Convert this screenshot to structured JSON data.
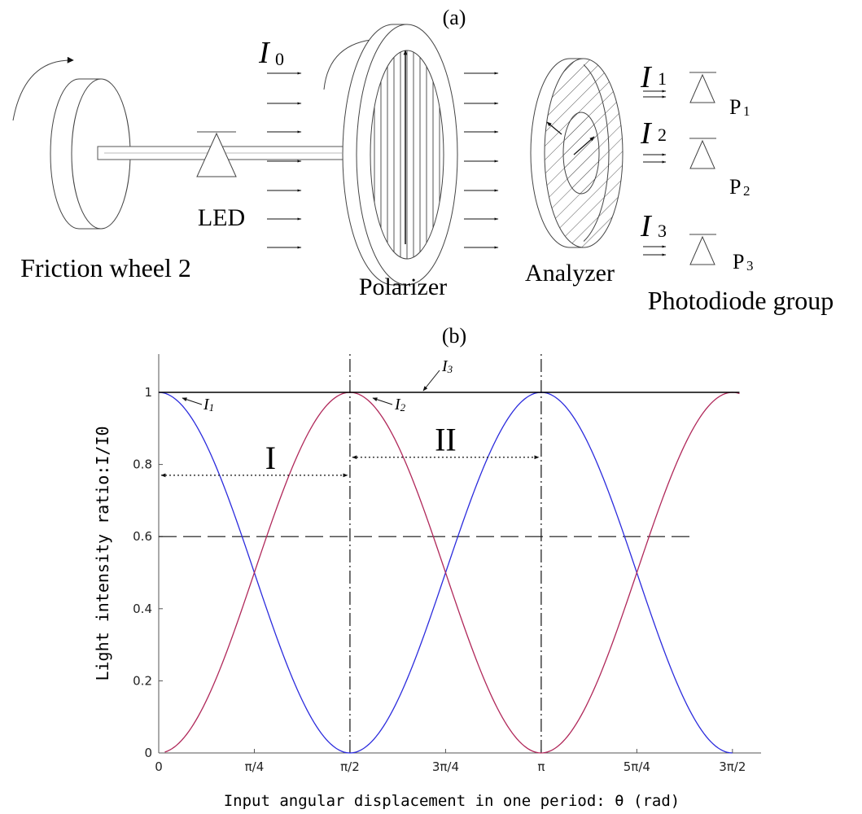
{
  "panel_a": {
    "label": "(a)",
    "friction_wheel_label": "Friction wheel 2",
    "led_label": "LED",
    "polarizer_label": "Polarizer",
    "analyzer_label": "Analyzer",
    "photodiode_label": "Photodiode group",
    "i0": {
      "main": "I",
      "sub": "0"
    },
    "i1": {
      "main": "I",
      "sub": "1"
    },
    "i2": {
      "main": "I",
      "sub": "2"
    },
    "i3": {
      "main": "I",
      "sub": "3"
    },
    "p1": {
      "main": "P",
      "sub": "1"
    },
    "p2": {
      "main": "P",
      "sub": "2"
    },
    "p3": {
      "main": "P",
      "sub": "3"
    }
  },
  "panel_b": {
    "label": "(b)",
    "region_1_label": "I",
    "region_2_label": "II",
    "curve_label_i1": "I1",
    "curve_label_i2": "I2",
    "curve_label_i3": "I3"
  },
  "chart_data": {
    "type": "line",
    "title": "",
    "xlabel": "Input angular displacement in one period: θ (rad)",
    "ylabel": "Light intensity ratio:I/I0",
    "xlim": [
      0,
      4.75
    ],
    "ylim": [
      0,
      1.1
    ],
    "x_ticks": [
      0,
      0.7854,
      1.5708,
      2.3562,
      3.1416,
      3.927,
      4.7124
    ],
    "x_tick_labels": [
      "0",
      "π/4",
      "π/2",
      "3π/4",
      "π",
      "5π/4",
      "3π/2"
    ],
    "y_ticks": [
      0,
      0.2,
      0.4,
      0.6,
      0.8,
      1
    ],
    "y_tick_labels": [
      "0",
      "0.2",
      "0.4",
      "0.6",
      "0.8",
      "1"
    ],
    "grid": false,
    "series": [
      {
        "name": "I1",
        "color": "#2b2bdd",
        "formula": "cos^2(theta)",
        "x_range": [
          0,
          4.7124
        ],
        "x": [
          0,
          0.3927,
          0.7854,
          1.1781,
          1.5708,
          1.9635,
          2.3562,
          2.7489,
          3.1416,
          3.5343,
          3.927,
          4.3197,
          4.7124
        ],
        "y": [
          1,
          0.854,
          0.5,
          0.146,
          0,
          0.146,
          0.5,
          0.854,
          1,
          0.854,
          0.5,
          0.146,
          0
        ]
      },
      {
        "name": "I2",
        "color": "#b0285a",
        "formula": "sin^2(theta)",
        "x_range": [
          0.05,
          4.77
        ],
        "x": [
          0,
          0.3927,
          0.7854,
          1.1781,
          1.5708,
          1.9635,
          2.3562,
          2.7489,
          3.1416,
          3.5343,
          3.927,
          4.3197,
          4.7124
        ],
        "y": [
          0,
          0.146,
          0.5,
          0.854,
          1,
          0.854,
          0.5,
          0.146,
          0,
          0.146,
          0.5,
          0.854,
          1
        ]
      },
      {
        "name": "I3",
        "color": "#000000",
        "formula": "1",
        "x_range": [
          0,
          4.77
        ],
        "x": [
          0,
          4.77
        ],
        "y": [
          1,
          1
        ]
      }
    ],
    "reference_lines": [
      {
        "orientation": "horizontal",
        "y": 0.6,
        "style": "dashed",
        "x_range": [
          0,
          4.4
        ]
      },
      {
        "orientation": "vertical",
        "x": 1.5708,
        "style": "dashdot"
      },
      {
        "orientation": "vertical",
        "x": 3.1416,
        "style": "dashdot"
      }
    ],
    "annotations": [
      {
        "text": "I",
        "from_x": 0,
        "to_x": 1.5708,
        "y": 0.77,
        "arrow": "double, dotted"
      },
      {
        "text": "II",
        "from_x": 1.5708,
        "to_x": 3.1416,
        "y": 0.82,
        "arrow": "double, dotted"
      }
    ]
  }
}
